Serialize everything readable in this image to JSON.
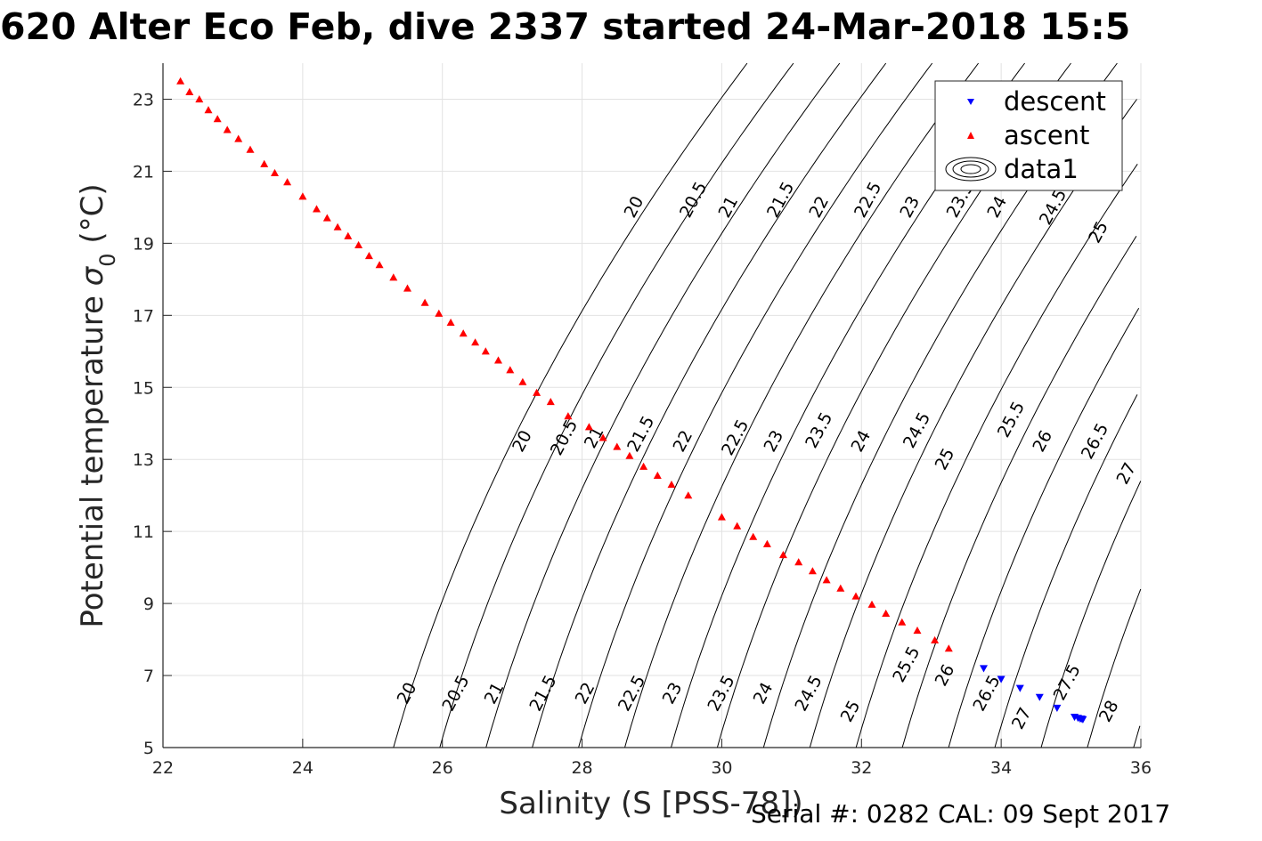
{
  "title": "620 Alter Eco Feb, dive 2337 started 24-Mar-2018 15:5",
  "footer": "Serial #: 0282  CAL: 09 Sept 2017",
  "chart_data": {
    "type": "scatter",
    "title": "620 Alter Eco Feb, dive 2337 started 24-Mar-2018 15:5",
    "xlabel": "Salinity (S [PSS-78])",
    "ylabel_main": "Potential temperature ",
    "ylabel_symbol": "σ",
    "ylabel_sub": "0",
    "ylabel_unit": " (°C)",
    "xlim": [
      22,
      36
    ],
    "ylim": [
      5,
      24
    ],
    "xticks": [
      22,
      24,
      26,
      28,
      30,
      32,
      34,
      36
    ],
    "yticks": [
      5,
      7,
      9,
      11,
      13,
      15,
      17,
      19,
      21,
      23
    ],
    "grid": true,
    "legend": {
      "position": "top-right",
      "entries": [
        {
          "label": "descent",
          "marker": "triangle-down",
          "color": "#0000ff"
        },
        {
          "label": "ascent",
          "marker": "triangle-up",
          "color": "#ff0000"
        },
        {
          "label": "data1",
          "marker": "contour",
          "color": "#000000"
        }
      ]
    },
    "series": [
      {
        "name": "descent",
        "color": "#0000ff",
        "marker": "triangle-down",
        "points": [
          [
            33.75,
            7.2
          ],
          [
            34.0,
            6.9
          ],
          [
            34.27,
            6.65
          ],
          [
            34.55,
            6.4
          ],
          [
            34.8,
            6.1
          ],
          [
            35.05,
            5.85
          ],
          [
            35.1,
            5.82
          ],
          [
            35.13,
            5.8
          ],
          [
            35.15,
            5.8
          ],
          [
            35.17,
            5.78
          ]
        ]
      },
      {
        "name": "ascent",
        "color": "#ff0000",
        "marker": "triangle-up",
        "points": [
          [
            22.25,
            23.5
          ],
          [
            22.38,
            23.2
          ],
          [
            22.52,
            23.0
          ],
          [
            22.65,
            22.7
          ],
          [
            22.78,
            22.45
          ],
          [
            22.92,
            22.15
          ],
          [
            23.08,
            21.9
          ],
          [
            23.25,
            21.6
          ],
          [
            23.45,
            21.2
          ],
          [
            23.6,
            20.95
          ],
          [
            23.78,
            20.7
          ],
          [
            24.0,
            20.3
          ],
          [
            24.2,
            19.95
          ],
          [
            24.35,
            19.7
          ],
          [
            24.5,
            19.45
          ],
          [
            24.65,
            19.2
          ],
          [
            24.8,
            18.95
          ],
          [
            24.95,
            18.65
          ],
          [
            25.1,
            18.4
          ],
          [
            25.3,
            18.05
          ],
          [
            25.5,
            17.75
          ],
          [
            25.75,
            17.35
          ],
          [
            25.95,
            17.05
          ],
          [
            26.12,
            16.8
          ],
          [
            26.3,
            16.5
          ],
          [
            26.47,
            16.25
          ],
          [
            26.62,
            16.0
          ],
          [
            26.8,
            15.75
          ],
          [
            26.97,
            15.48
          ],
          [
            27.15,
            15.15
          ],
          [
            27.35,
            14.85
          ],
          [
            27.55,
            14.6
          ],
          [
            27.8,
            14.2
          ],
          [
            28.1,
            13.9
          ],
          [
            28.3,
            13.6
          ],
          [
            28.5,
            13.35
          ],
          [
            28.68,
            13.1
          ],
          [
            28.88,
            12.8
          ],
          [
            29.08,
            12.55
          ],
          [
            29.28,
            12.3
          ],
          [
            29.52,
            12.0
          ],
          [
            30.0,
            11.4
          ],
          [
            30.22,
            11.15
          ],
          [
            30.45,
            10.85
          ],
          [
            30.65,
            10.65
          ],
          [
            30.88,
            10.35
          ],
          [
            31.1,
            10.15
          ],
          [
            31.3,
            9.9
          ],
          [
            31.5,
            9.65
          ],
          [
            31.7,
            9.42
          ],
          [
            31.92,
            9.2
          ],
          [
            32.15,
            8.97
          ],
          [
            32.35,
            8.72
          ],
          [
            32.58,
            8.48
          ],
          [
            32.8,
            8.25
          ],
          [
            33.05,
            7.98
          ],
          [
            33.25,
            7.75
          ]
        ]
      }
    ],
    "contour_levels": [
      20,
      20.5,
      21,
      21.5,
      22,
      22.5,
      23,
      23.5,
      24,
      24.5,
      25,
      25.5,
      26,
      26.5,
      27,
      27.5,
      28
    ],
    "contour_labels": [
      {
        "text": "20",
        "x": 25.5,
        "y": 6.5
      },
      {
        "text": "20.5",
        "x": 26.2,
        "y": 6.5
      },
      {
        "text": "21",
        "x": 26.75,
        "y": 6.5
      },
      {
        "text": "21.5",
        "x": 27.45,
        "y": 6.5
      },
      {
        "text": "22",
        "x": 28.05,
        "y": 6.5
      },
      {
        "text": "22.5",
        "x": 28.72,
        "y": 6.5
      },
      {
        "text": "23",
        "x": 29.3,
        "y": 6.5
      },
      {
        "text": "23.5",
        "x": 30.0,
        "y": 6.5
      },
      {
        "text": "24",
        "x": 30.6,
        "y": 6.5
      },
      {
        "text": "24.5",
        "x": 31.25,
        "y": 6.5
      },
      {
        "text": "25",
        "x": 31.85,
        "y": 6.0
      },
      {
        "text": "25.5",
        "x": 32.65,
        "y": 7.3
      },
      {
        "text": "26",
        "x": 33.2,
        "y": 7.0
      },
      {
        "text": "26.5",
        "x": 33.8,
        "y": 6.5
      },
      {
        "text": "27",
        "x": 34.3,
        "y": 5.8
      },
      {
        "text": "27.5",
        "x": 34.95,
        "y": 6.8
      },
      {
        "text": "28",
        "x": 35.55,
        "y": 6.0
      },
      {
        "text": "20",
        "x": 27.15,
        "y": 13.5
      },
      {
        "text": "20.5",
        "x": 27.75,
        "y": 13.6
      },
      {
        "text": "21",
        "x": 28.18,
        "y": 13.6
      },
      {
        "text": "21.5",
        "x": 28.85,
        "y": 13.7
      },
      {
        "text": "22",
        "x": 29.45,
        "y": 13.5
      },
      {
        "text": "22.5",
        "x": 30.2,
        "y": 13.6
      },
      {
        "text": "23",
        "x": 30.75,
        "y": 13.5
      },
      {
        "text": "23.5",
        "x": 31.4,
        "y": 13.8
      },
      {
        "text": "24",
        "x": 32.0,
        "y": 13.5
      },
      {
        "text": "24.5",
        "x": 32.8,
        "y": 13.8
      },
      {
        "text": "25",
        "x": 33.2,
        "y": 13.0
      },
      {
        "text": "25.5",
        "x": 34.15,
        "y": 14.1
      },
      {
        "text": "26",
        "x": 34.6,
        "y": 13.5
      },
      {
        "text": "26.5",
        "x": 35.35,
        "y": 13.5
      },
      {
        "text": "27",
        "x": 35.8,
        "y": 12.6
      },
      {
        "text": "20",
        "x": 28.75,
        "y": 20.0
      },
      {
        "text": "20.5",
        "x": 29.6,
        "y": 20.2
      },
      {
        "text": "21",
        "x": 30.1,
        "y": 20.0
      },
      {
        "text": "21.5",
        "x": 30.85,
        "y": 20.2
      },
      {
        "text": "22",
        "x": 31.4,
        "y": 20.0
      },
      {
        "text": "22.5",
        "x": 32.1,
        "y": 20.2
      },
      {
        "text": "23",
        "x": 32.7,
        "y": 20.0
      },
      {
        "text": "23.5",
        "x": 33.42,
        "y": 20.2
      },
      {
        "text": "24",
        "x": 33.95,
        "y": 20.0
      },
      {
        "text": "24.5",
        "x": 34.75,
        "y": 20.0
      },
      {
        "text": "25",
        "x": 35.4,
        "y": 19.3
      }
    ]
  }
}
